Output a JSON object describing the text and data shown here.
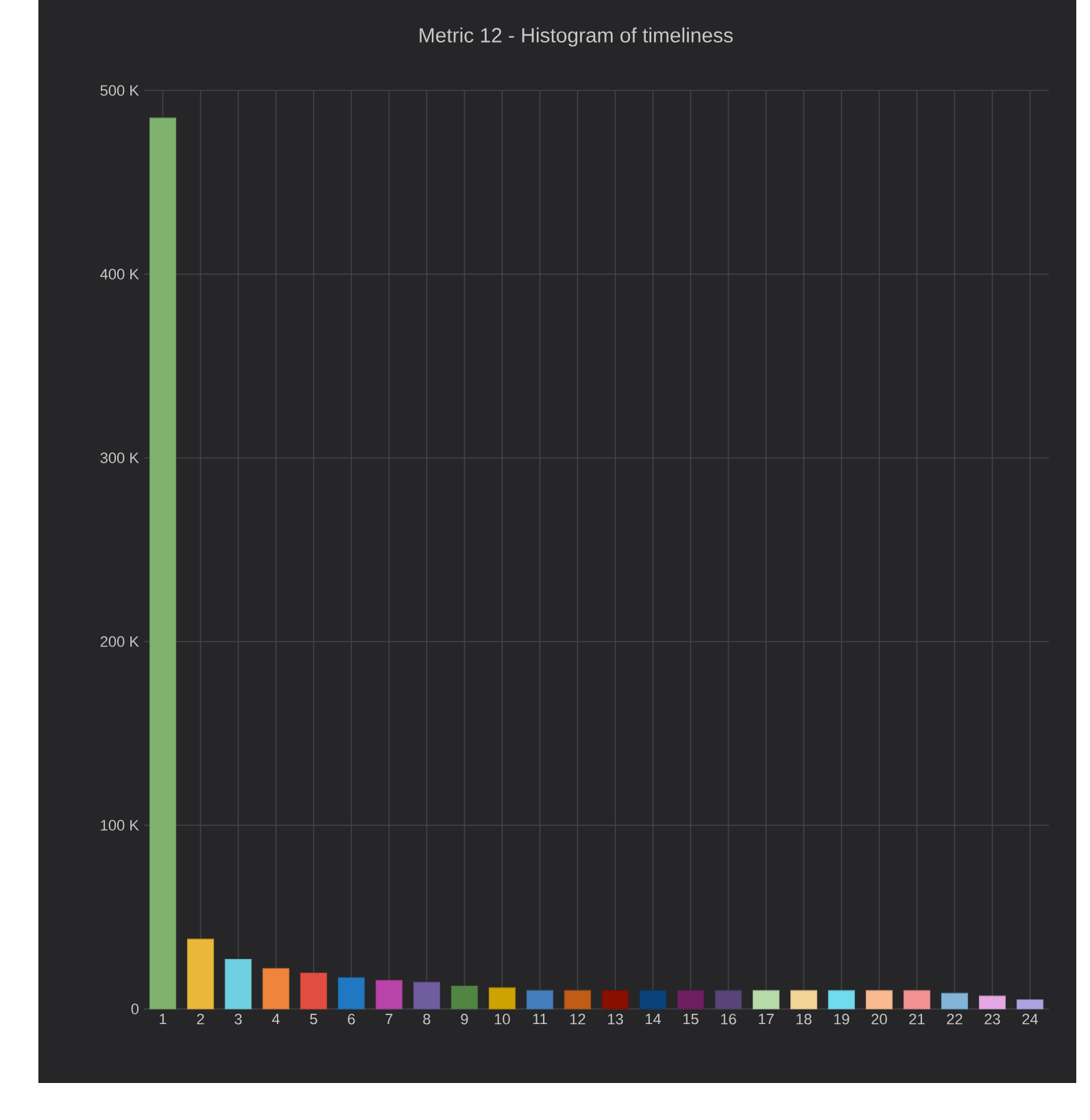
{
  "chart_data": {
    "type": "bar",
    "title": "Metric 12 - Histogram of timeliness",
    "categories": [
      "1",
      "2",
      "3",
      "4",
      "5",
      "6",
      "7",
      "8",
      "9",
      "10",
      "11",
      "12",
      "13",
      "14",
      "15",
      "16",
      "17",
      "18",
      "19",
      "20",
      "21",
      "22",
      "23",
      "24"
    ],
    "values": [
      485000,
      38000,
      27000,
      22000,
      19500,
      17000,
      15500,
      14500,
      12500,
      11500,
      10000,
      10000,
      10000,
      10000,
      10000,
      10000,
      10000,
      10000,
      10000,
      10000,
      10000,
      8500,
      7000,
      5000
    ],
    "colors": [
      "#7eb26d",
      "#eab839",
      "#6ed0e0",
      "#ef843c",
      "#e24d42",
      "#1f78c1",
      "#ba43a9",
      "#705da0",
      "#508642",
      "#cca300",
      "#447ebc",
      "#c15c17",
      "#890f02",
      "#0a437c",
      "#6d1f62",
      "#584477",
      "#b7dbab",
      "#f4d598",
      "#70dbed",
      "#f9ba8f",
      "#f29191",
      "#82b5d8",
      "#e5a8e2",
      "#aea2e0"
    ],
    "ylim": [
      0,
      500000
    ],
    "yticks": [
      {
        "value": 0,
        "label": "0"
      },
      {
        "value": 100000,
        "label": "100 K"
      },
      {
        "value": 200000,
        "label": "200 K"
      },
      {
        "value": 300000,
        "label": "300 K"
      },
      {
        "value": 400000,
        "label": "400 K"
      },
      {
        "value": 500000,
        "label": "500 K"
      }
    ],
    "grid": true
  }
}
